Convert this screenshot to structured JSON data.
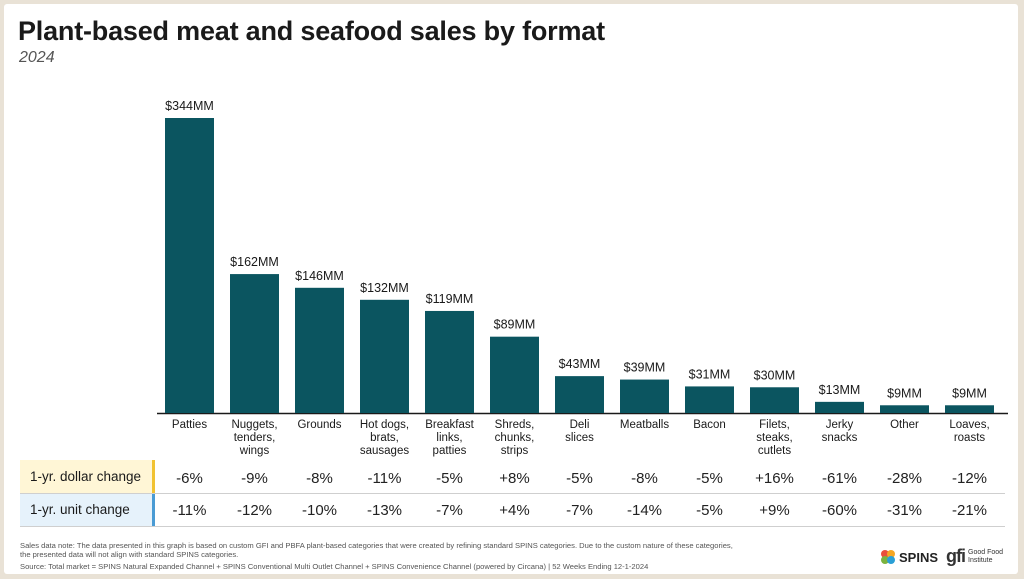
{
  "header": {
    "title": "Plant-based meat and seafood sales by format",
    "subtitle": "2024"
  },
  "chart_data": {
    "type": "bar",
    "title": "Plant-based meat and seafood sales by format",
    "subtitle": "2024",
    "categories": [
      [
        "Patties"
      ],
      [
        "Nuggets,",
        "tenders,",
        "wings"
      ],
      [
        "Grounds"
      ],
      [
        "Hot dogs,",
        "brats,",
        "sausages"
      ],
      [
        "Breakfast",
        "links,",
        "patties"
      ],
      [
        "Shreds,",
        "chunks,",
        "strips"
      ],
      [
        "Deli",
        "slices"
      ],
      [
        "Meatballs"
      ],
      [
        "Bacon"
      ],
      [
        "Filets,",
        "steaks,",
        "cutlets"
      ],
      [
        "Jerky",
        "snacks"
      ],
      [
        "Other"
      ],
      [
        "Loaves,",
        "roasts"
      ]
    ],
    "values": [
      344,
      162,
      146,
      132,
      119,
      89,
      43,
      39,
      31,
      30,
      13,
      9,
      9
    ],
    "value_labels": [
      "$344MM",
      "$162MM",
      "$146MM",
      "$132MM",
      "$119MM",
      "$89MM",
      "$43MM",
      "$39MM",
      "$31MM",
      "$30MM",
      "$13MM",
      "$9MM",
      "$9MM"
    ],
    "unit": "$MM",
    "ylim": [
      0,
      344
    ],
    "bar_color": "#0b5560",
    "grid": false,
    "table": {
      "dollar_change_label": "1-yr. dollar change",
      "unit_change_label": "1-yr. unit change",
      "dollar_change": [
        "-6%",
        "-9%",
        "-8%",
        "-11%",
        "-5%",
        "+8%",
        "-5%",
        "-8%",
        "-5%",
        "+16%",
        "-61%",
        "-28%",
        "-12%"
      ],
      "unit_change": [
        "-11%",
        "-12%",
        "-10%",
        "-13%",
        "-7%",
        "+4%",
        "-7%",
        "-14%",
        "-5%",
        "+9%",
        "-60%",
        "-31%",
        "-21%"
      ]
    }
  },
  "footer": {
    "note_line1": "Sales data note: The data presented in this graph is based on custom GFI and PBFA plant-based categories that were created by refining standard SPINS categories. Due to the custom nature of these categories,",
    "note_line2": "the presented data will not align with standard SPINS categories.",
    "source": "Source: Total market = SPINS Natural Expanded Channel + SPINS Conventional Multi Outlet Channel + SPINS Convenience Channel (powered by Circana) | 52 Weeks Ending 12-1-2024",
    "logo_spins": "SPINS",
    "logo_gfi_mark": "gfi",
    "logo_gfi_line1": "Good Food",
    "logo_gfi_line2": "Institute"
  },
  "colors": {
    "background": "#e9e2d6",
    "bar": "#0b5560",
    "dollar_row_accent": "#f1c232",
    "unit_row_accent": "#4a9bd4"
  }
}
